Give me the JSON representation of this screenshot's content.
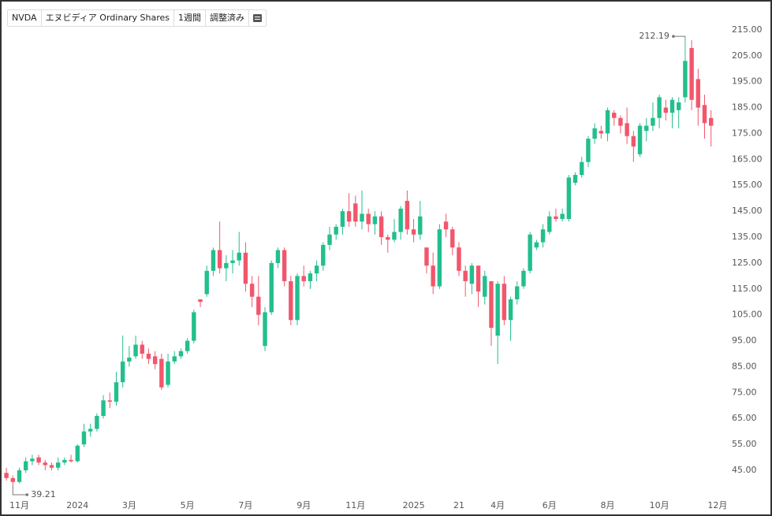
{
  "toolbar": {
    "symbol": "NVDA",
    "name": "エヌビディア Ordinary Shares",
    "interval": "1週間",
    "adjustment": "調整済み"
  },
  "chart_data": {
    "type": "candlestick",
    "categories": [
      null,
      null,
      "11月",
      null,
      null,
      null,
      null,
      null,
      null,
      null,
      null,
      "2024",
      null,
      null,
      null,
      null,
      null,
      null,
      null,
      "3月",
      null,
      null,
      null,
      null,
      null,
      null,
      null,
      null,
      "5月",
      null,
      null,
      null,
      null,
      null,
      null,
      null,
      null,
      "7月",
      null,
      null,
      null,
      null,
      null,
      null,
      null,
      null,
      "9月",
      null,
      null,
      null,
      null,
      null,
      null,
      null,
      "11月",
      null,
      null,
      null,
      null,
      null,
      null,
      null,
      null,
      "2025",
      null,
      null,
      null,
      null,
      null,
      null,
      "21",
      null,
      null,
      null,
      null,
      null,
      "4月",
      null,
      null,
      null,
      null,
      null,
      null,
      null,
      "6月",
      null,
      null,
      null,
      null,
      null,
      null,
      null,
      null,
      "8月",
      null,
      null,
      null,
      null,
      null,
      null,
      null,
      "10月",
      null,
      null,
      null,
      null,
      null,
      null,
      null,
      null,
      "12月"
    ],
    "open": [
      44,
      42,
      40.5,
      45,
      48.5,
      50,
      48,
      47,
      46,
      48,
      49,
      48.5,
      55,
      60,
      61,
      66,
      72,
      71.5,
      79,
      87,
      89,
      93.5,
      90,
      89,
      88,
      78,
      87,
      89,
      91,
      95,
      111,
      113,
      122,
      130,
      123,
      125,
      126,
      129,
      117,
      112,
      93,
      106,
      125,
      130,
      118,
      103,
      120,
      118,
      121,
      124,
      132,
      136,
      139,
      145,
      148,
      141,
      144,
      140,
      143,
      135,
      134,
      137,
      149,
      138,
      136,
      131,
      124,
      116,
      141,
      138,
      131,
      122,
      117,
      124,
      112,
      118,
      97,
      117,
      103,
      111,
      116,
      122,
      131,
      133,
      137,
      143,
      142,
      142,
      156,
      159,
      164,
      173,
      176,
      175,
      183,
      181,
      179,
      174,
      167,
      176,
      178,
      181,
      185,
      183,
      184,
      189,
      208,
      196,
      186,
      181,
      null
    ],
    "high": [
      46,
      43,
      46,
      50,
      51,
      51,
      49,
      48,
      50,
      50,
      51,
      55,
      63,
      63,
      67,
      74,
      75,
      83,
      97,
      93,
      97,
      95,
      92,
      91,
      90,
      90,
      91,
      92,
      96,
      107,
      111,
      124,
      131,
      141,
      128,
      130,
      137,
      133,
      120,
      120,
      108,
      126,
      131,
      131,
      120,
      121,
      124,
      122,
      126,
      133,
      139,
      140,
      146,
      152,
      151,
      153,
      146,
      145,
      145,
      136,
      142,
      147,
      153,
      142,
      149,
      131,
      129,
      140,
      144,
      139,
      133,
      124,
      125,
      124,
      122,
      118,
      118,
      120,
      112,
      118,
      123,
      137,
      134,
      140,
      145,
      146,
      146,
      159,
      160,
      166,
      174,
      179,
      178,
      185,
      184,
      182,
      185,
      176,
      179,
      181,
      187,
      190,
      188,
      189,
      189,
      212.19,
      211,
      200,
      190,
      184,
      null
    ],
    "low": [
      41,
      39.21,
      40,
      44,
      47,
      47,
      45,
      45,
      45,
      47,
      48,
      48,
      54,
      58,
      60,
      65,
      69,
      70,
      77,
      85,
      88,
      88,
      86,
      84,
      76,
      77,
      86,
      88,
      90,
      94,
      108,
      112,
      120,
      121,
      118,
      121,
      124,
      114,
      108,
      101,
      91,
      105,
      123,
      116,
      101,
      101,
      116,
      115,
      118,
      122,
      130,
      134,
      136,
      139,
      139,
      138,
      137,
      136,
      132,
      129,
      133,
      134,
      136,
      133,
      134,
      121,
      113,
      115,
      135,
      128,
      120,
      112,
      113,
      108,
      109,
      93,
      86,
      101,
      95,
      109,
      115,
      121,
      130,
      131,
      136,
      141,
      141,
      141,
      155,
      158,
      162,
      171,
      173,
      172,
      178,
      175,
      171,
      164,
      166,
      172,
      176,
      177,
      180,
      177,
      177,
      187,
      184,
      178,
      173,
      170,
      null
    ],
    "close": [
      42,
      40.5,
      45,
      48.5,
      49.5,
      48,
      47,
      46,
      48,
      49,
      48.5,
      54.5,
      60,
      61,
      66,
      72,
      71.5,
      79,
      87,
      88.5,
      93.5,
      90,
      88,
      86,
      77,
      87,
      89,
      91,
      95,
      106,
      110,
      122,
      130,
      123,
      125,
      126,
      129,
      117,
      112,
      105,
      106,
      125,
      130,
      118,
      103,
      120,
      118,
      121,
      124,
      132,
      136,
      139,
      145,
      141,
      141,
      144,
      140,
      143,
      135,
      134,
      137,
      146,
      138,
      136,
      143,
      124,
      116,
      138,
      138,
      131,
      122,
      118,
      124,
      114,
      120,
      100,
      117,
      103,
      111,
      116,
      122,
      136,
      133,
      138,
      143,
      142,
      144,
      158,
      159,
      164,
      173,
      177,
      175,
      184,
      181,
      178,
      174,
      170,
      178,
      178,
      181,
      189,
      183,
      188,
      187,
      203,
      188,
      185,
      179,
      178,
      null
    ],
    "up_color": "#22bf8d",
    "down_color": "#f2566c",
    "ylim": [
      37.4,
      224.4
    ],
    "yticks": [
      {
        "value": 45,
        "label": "45.00"
      },
      {
        "value": 55,
        "label": "55.00"
      },
      {
        "value": 65,
        "label": "65.00"
      },
      {
        "value": 75,
        "label": "75.00"
      },
      {
        "value": 85,
        "label": "85.00"
      },
      {
        "value": 95,
        "label": "95.00"
      },
      {
        "value": 105,
        "label": "105.00"
      },
      {
        "value": 115,
        "label": "115.00"
      },
      {
        "value": 125,
        "label": "125.00"
      },
      {
        "value": 135,
        "label": "135.00"
      },
      {
        "value": 145,
        "label": "145.00"
      },
      {
        "value": 155,
        "label": "155.00"
      },
      {
        "value": 165,
        "label": "165.00"
      },
      {
        "value": 175,
        "label": "175.00"
      },
      {
        "value": 185,
        "label": "185.00"
      },
      {
        "value": 195,
        "label": "195.00"
      },
      {
        "value": 205,
        "label": "205.00"
      },
      {
        "value": 215,
        "label": "215.00"
      }
    ],
    "grid": false,
    "annotations": [
      {
        "point": "high",
        "index": 105
      },
      {
        "point": "low",
        "index": 1
      }
    ]
  }
}
